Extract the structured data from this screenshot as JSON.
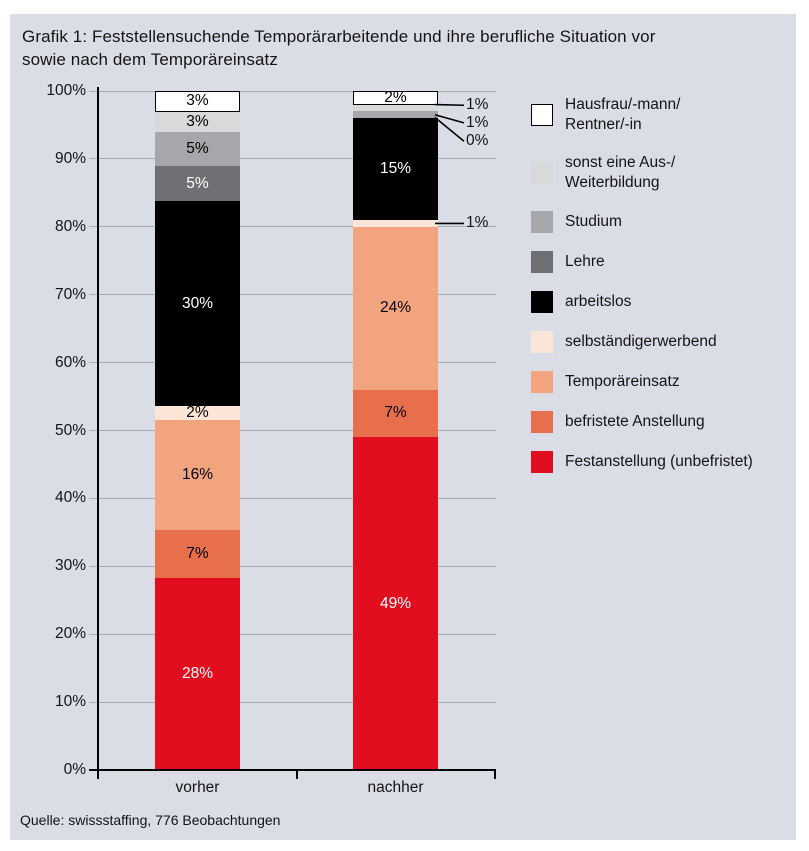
{
  "title": {
    "line1": "Grafik 1: Feststellensuchende Temporärarbeitende und ihre berufliche Situation vor",
    "line2": "sowie nach dem Temporäreinsatz"
  },
  "source": "Quelle: swissstaffing, 776 Beobachtungen",
  "colors": {
    "panel_bg": "#dadde5",
    "gridline": "#a7acb7",
    "axis": "#000000"
  },
  "chart_data": {
    "type": "bar",
    "variant": "stacked-percent",
    "title": "Grafik 1: Feststellensuchende Temporärarbeitende und ihre berufliche Situation vor sowie nach dem Temporäreinsatz",
    "xlabel": "",
    "ylabel": "",
    "ylim": [
      0,
      100
    ],
    "grid": true,
    "legend_position": "right",
    "categories": [
      "vorher",
      "nachher"
    ],
    "y_ticks": [
      "0%",
      "10%",
      "20%",
      "30%",
      "40%",
      "50%",
      "60%",
      "70%",
      "80%",
      "90%",
      "100%"
    ],
    "series": [
      {
        "name": "Festanstellung (unbefristet)",
        "legend_label": "Festanstellung (unbefristet)",
        "color": "#e30d20",
        "label_color": "#ffffff",
        "values": [
          28,
          49
        ]
      },
      {
        "name": "befristete Anstellung",
        "legend_label": "befristete Anstellung",
        "color": "#e86f4c",
        "label_color": "#000000",
        "values": [
          7,
          7
        ]
      },
      {
        "name": "Temporäreinsatz",
        "legend_label": "Temporäreinsatz",
        "color": "#f2a47f",
        "label_color": "#000000",
        "values": [
          16,
          24
        ]
      },
      {
        "name": "selbständigerwerbend",
        "legend_label": "selbständigerwerbend",
        "color": "#fbe5d6",
        "label_color": "#000000",
        "values": [
          2,
          1
        ]
      },
      {
        "name": "arbeitslos",
        "legend_label": "arbeitslos",
        "color": "#000000",
        "label_color": "#ffffff",
        "values": [
          30,
          15
        ]
      },
      {
        "name": "Lehre",
        "legend_label": "Lehre",
        "color": "#6f7073",
        "label_color": "#ffffff",
        "values": [
          5,
          0
        ]
      },
      {
        "name": "Studium",
        "legend_label": "Studium",
        "color": "#a5a7aa",
        "label_color": "#000000",
        "values": [
          5,
          1
        ]
      },
      {
        "name": "sonst eine Aus-/Weiterbildung",
        "legend_label": "sonst eine Aus-/\nWeiterbildung",
        "color": "#d8d9db",
        "label_color": "#000000",
        "values": [
          3,
          1
        ]
      },
      {
        "name": "Hausfrau/-mann/Rentner/-in",
        "legend_label": "Hausfrau/-mann/\nRentner/-in",
        "color": "#ffffff",
        "label_color": "#000000",
        "values": [
          3,
          2
        ],
        "border": true
      }
    ],
    "callouts": [
      {
        "category": "nachher",
        "series": "sonst eine Aus-/Weiterbildung",
        "label": "1%",
        "anchor_pct": 98.0,
        "label_pct": 97.9
      },
      {
        "category": "nachher",
        "series": "Studium",
        "label": "1%",
        "anchor_pct": 96.5,
        "label_pct": 95.3
      },
      {
        "category": "nachher",
        "series": "Lehre",
        "label": "0%",
        "anchor_pct": 96.1,
        "label_pct": 92.6
      },
      {
        "category": "nachher",
        "series": "selbständigerwerbend",
        "label": "1%",
        "anchor_pct": 80.5,
        "label_pct": 80.5
      }
    ]
  }
}
